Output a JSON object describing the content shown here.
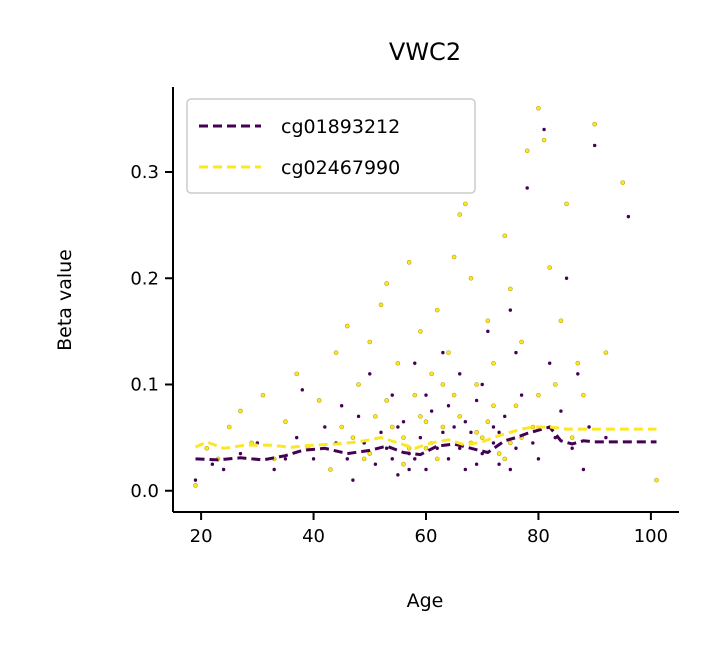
{
  "chart_data": {
    "type": "scatter",
    "title": "VWC2",
    "xlabel": "Age",
    "ylabel": "Beta value",
    "xlim": [
      15,
      105
    ],
    "ylim": [
      -0.02,
      0.38
    ],
    "xticks": [
      20,
      40,
      60,
      80,
      100
    ],
    "yticks": [
      0.0,
      0.1,
      0.2,
      0.3
    ],
    "xtick_labels": [
      "20",
      "40",
      "60",
      "80",
      "100"
    ],
    "ytick_labels": [
      "0.0",
      "0.1",
      "0.2",
      "0.3"
    ],
    "grid": false,
    "legend_position": "top-left",
    "series": [
      {
        "name": "cg01893212",
        "color": "#440154",
        "trend": {
          "x": [
            19,
            23,
            27,
            31,
            35,
            38,
            42,
            46,
            50,
            53,
            56,
            59,
            62,
            65,
            68,
            71,
            74,
            76,
            78,
            80,
            82,
            84,
            86,
            88,
            90,
            95,
            101
          ],
          "y": [
            0.03,
            0.029,
            0.031,
            0.029,
            0.033,
            0.038,
            0.04,
            0.035,
            0.038,
            0.042,
            0.036,
            0.034,
            0.042,
            0.044,
            0.04,
            0.036,
            0.047,
            0.05,
            0.054,
            0.057,
            0.06,
            0.047,
            0.044,
            0.047,
            0.046,
            0.046,
            0.046
          ]
        },
        "points": [
          [
            19,
            0.01
          ],
          [
            22,
            0.025
          ],
          [
            24,
            0.02
          ],
          [
            27,
            0.035
          ],
          [
            30,
            0.045
          ],
          [
            33,
            0.02
          ],
          [
            35,
            0.03
          ],
          [
            37,
            0.05
          ],
          [
            38,
            0.095
          ],
          [
            40,
            0.03
          ],
          [
            42,
            0.06
          ],
          [
            43,
            0.02
          ],
          [
            44,
            0.045
          ],
          [
            45,
            0.08
          ],
          [
            46,
            0.03
          ],
          [
            47,
            0.01
          ],
          [
            48,
            0.07
          ],
          [
            49,
            0.045
          ],
          [
            50,
            0.11
          ],
          [
            51,
            0.025
          ],
          [
            52,
            0.055
          ],
          [
            53,
            0.04
          ],
          [
            54,
            0.09
          ],
          [
            55,
            0.015
          ],
          [
            56,
            0.065
          ],
          [
            57,
            0.035
          ],
          [
            58,
            0.12
          ],
          [
            59,
            0.05
          ],
          [
            60,
            0.02
          ],
          [
            61,
            0.075
          ],
          [
            62,
            0.04
          ],
          [
            63,
            0.13
          ],
          [
            64,
            0.03
          ],
          [
            65,
            0.06
          ],
          [
            66,
            0.11
          ],
          [
            67,
            0.02
          ],
          [
            68,
            0.055
          ],
          [
            69,
            0.085
          ],
          [
            70,
            0.035
          ],
          [
            71,
            0.15
          ],
          [
            72,
            0.045
          ],
          [
            73,
            0.025
          ],
          [
            74,
            0.07
          ],
          [
            75,
            0.17
          ],
          [
            76,
            0.04
          ],
          [
            77,
            0.09
          ],
          [
            78,
            0.285
          ],
          [
            79,
            0.06
          ],
          [
            80,
            0.03
          ],
          [
            81,
            0.34
          ],
          [
            82,
            0.12
          ],
          [
            83,
            0.05
          ],
          [
            84,
            0.075
          ],
          [
            85,
            0.2
          ],
          [
            86,
            0.04
          ],
          [
            87,
            0.11
          ],
          [
            88,
            0.02
          ],
          [
            89,
            0.06
          ],
          [
            90,
            0.325
          ],
          [
            92,
            0.05
          ],
          [
            96,
            0.258
          ],
          [
            55,
            0.06
          ],
          [
            58,
            0.03
          ],
          [
            61,
            0.045
          ],
          [
            64,
            0.08
          ],
          [
            67,
            0.065
          ],
          [
            70,
            0.1
          ],
          [
            73,
            0.055
          ],
          [
            76,
            0.13
          ],
          [
            79,
            0.045
          ],
          [
            47,
            0.05
          ],
          [
            51,
            0.07
          ],
          [
            54,
            0.03
          ],
          [
            57,
            0.02
          ],
          [
            60,
            0.09
          ],
          [
            63,
            0.055
          ],
          [
            66,
            0.04
          ],
          [
            69,
            0.025
          ],
          [
            72,
            0.06
          ],
          [
            75,
            0.02
          ]
        ]
      },
      {
        "name": "cg02467990",
        "color": "#fde725",
        "trend": {
          "x": [
            19,
            21,
            24,
            28,
            32,
            36,
            40,
            44,
            48,
            52,
            55,
            58,
            61,
            64,
            67,
            70,
            73,
            75,
            77,
            79,
            82,
            85,
            88,
            92,
            96,
            101
          ],
          "y": [
            0.041,
            0.046,
            0.04,
            0.043,
            0.043,
            0.041,
            0.043,
            0.044,
            0.046,
            0.05,
            0.045,
            0.04,
            0.045,
            0.048,
            0.043,
            0.046,
            0.052,
            0.055,
            0.058,
            0.06,
            0.06,
            0.058,
            0.058,
            0.058,
            0.058,
            0.058
          ]
        },
        "points": [
          [
            19,
            0.005
          ],
          [
            21,
            0.04
          ],
          [
            23,
            0.03
          ],
          [
            25,
            0.06
          ],
          [
            27,
            0.075
          ],
          [
            29,
            0.045
          ],
          [
            31,
            0.09
          ],
          [
            33,
            0.03
          ],
          [
            35,
            0.065
          ],
          [
            37,
            0.11
          ],
          [
            39,
            0.04
          ],
          [
            41,
            0.085
          ],
          [
            43,
            0.02
          ],
          [
            44,
            0.13
          ],
          [
            46,
            0.155
          ],
          [
            47,
            0.05
          ],
          [
            48,
            0.1
          ],
          [
            49,
            0.03
          ],
          [
            50,
            0.14
          ],
          [
            51,
            0.07
          ],
          [
            52,
            0.175
          ],
          [
            53,
            0.195
          ],
          [
            54,
            0.06
          ],
          [
            55,
            0.12
          ],
          [
            56,
            0.025
          ],
          [
            57,
            0.215
          ],
          [
            58,
            0.09
          ],
          [
            59,
            0.15
          ],
          [
            60,
            0.04
          ],
          [
            61,
            0.11
          ],
          [
            62,
            0.17
          ],
          [
            63,
            0.06
          ],
          [
            64,
            0.13
          ],
          [
            65,
            0.22
          ],
          [
            66,
            0.26
          ],
          [
            67,
            0.27
          ],
          [
            68,
            0.2
          ],
          [
            69,
            0.1
          ],
          [
            70,
            0.05
          ],
          [
            71,
            0.16
          ],
          [
            72,
            0.12
          ],
          [
            73,
            0.035
          ],
          [
            74,
            0.24
          ],
          [
            75,
            0.19
          ],
          [
            76,
            0.08
          ],
          [
            77,
            0.14
          ],
          [
            78,
            0.32
          ],
          [
            79,
            0.06
          ],
          [
            80,
            0.36
          ],
          [
            81,
            0.33
          ],
          [
            82,
            0.21
          ],
          [
            83,
            0.1
          ],
          [
            84,
            0.16
          ],
          [
            85,
            0.27
          ],
          [
            86,
            0.05
          ],
          [
            87,
            0.12
          ],
          [
            88,
            0.09
          ],
          [
            90,
            0.345
          ],
          [
            92,
            0.13
          ],
          [
            95,
            0.29
          ],
          [
            101,
            0.01
          ],
          [
            56,
            0.05
          ],
          [
            59,
            0.07
          ],
          [
            62,
            0.03
          ],
          [
            65,
            0.09
          ],
          [
            68,
            0.045
          ],
          [
            71,
            0.065
          ],
          [
            74,
            0.03
          ],
          [
            77,
            0.05
          ],
          [
            80,
            0.09
          ],
          [
            45,
            0.06
          ],
          [
            50,
            0.035
          ],
          [
            53,
            0.085
          ],
          [
            57,
            0.04
          ],
          [
            60,
            0.065
          ],
          [
            63,
            0.1
          ],
          [
            66,
            0.07
          ],
          [
            69,
            0.055
          ],
          [
            72,
            0.08
          ],
          [
            75,
            0.045
          ]
        ]
      }
    ]
  }
}
